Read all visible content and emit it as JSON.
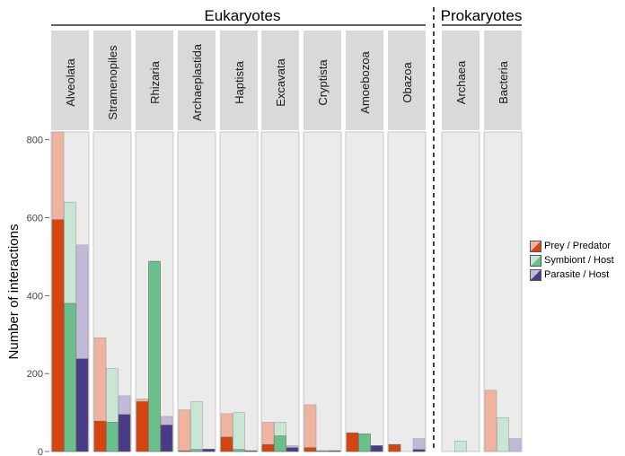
{
  "chart_data": {
    "type": "bar",
    "ylabel": "Number of interactions",
    "ylim": [
      0,
      820
    ],
    "yticks": [
      "0",
      "200",
      "400",
      "600",
      "800"
    ],
    "groups": [
      {
        "name": "Eukaryotes",
        "panels": [
          "Alveolata",
          "Stramenopiles",
          "Rhizaria",
          "Archaeplastida",
          "Haptista",
          "Excavata",
          "Cryptista",
          "Amoebozoa",
          "Obazoa"
        ]
      },
      {
        "name": "Prokaryotes",
        "panels": [
          "Archaea",
          "Bacteria"
        ]
      }
    ],
    "categories": [
      "Alveolata",
      "Stramenopiles",
      "Rhizaria",
      "Archaeplastida",
      "Haptista",
      "Excavata",
      "Cryptista",
      "Amoebozoa",
      "Obazoa",
      "Archaea",
      "Bacteria"
    ],
    "series": [
      {
        "name": "Prey / Predator",
        "dark_color": "#d4450f",
        "light_color": "#f0b3a0",
        "dark_values": [
          595,
          78,
          128,
          2,
          37,
          18,
          10,
          48,
          18,
          0,
          0
        ],
        "light_values": [
          820,
          292,
          135,
          107,
          97,
          75,
          120,
          48,
          18,
          0,
          157
        ]
      },
      {
        "name": "Symbiont / Host",
        "dark_color": "#6abf8a",
        "light_color": "#c8e6d3",
        "dark_values": [
          380,
          75,
          488,
          5,
          5,
          40,
          2,
          45,
          0,
          0,
          0
        ],
        "light_values": [
          640,
          213,
          488,
          128,
          100,
          75,
          2,
          45,
          0,
          27,
          87
        ]
      },
      {
        "name": "Parasite / Host",
        "dark_color": "#4a3b86",
        "light_color": "#c2b9d8",
        "dark_values": [
          238,
          95,
          68,
          6,
          2,
          10,
          2,
          15,
          5,
          0,
          0
        ],
        "light_values": [
          530,
          143,
          90,
          6,
          2,
          15,
          2,
          15,
          33,
          0,
          33
        ]
      }
    ]
  }
}
